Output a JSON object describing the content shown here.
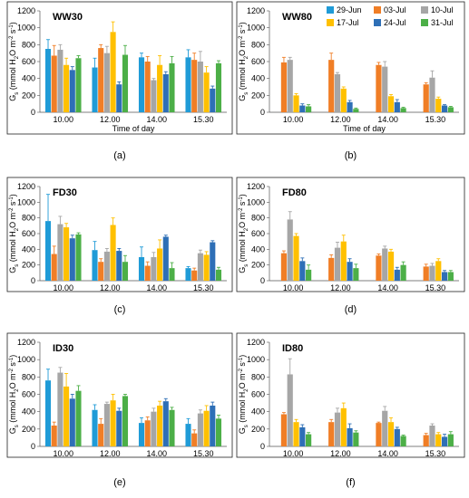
{
  "legend": [
    {
      "name": "29-Jun",
      "color": "#1f9bd7"
    },
    {
      "name": "03-Jul",
      "color": "#f07e26"
    },
    {
      "name": "10-Jul",
      "color": "#a6a6a6"
    },
    {
      "name": "17-Jul",
      "color": "#ffc000"
    },
    {
      "name": "24-Jul",
      "color": "#2e6fb6"
    },
    {
      "name": "31-Jul",
      "color": "#4caf47"
    }
  ],
  "chart_data": [
    {
      "type": "bar",
      "panel_label": "(a)",
      "title": "WW30",
      "xlabel": "Time of day",
      "ylabel": "Gs (mmol H2O m-2 s-1)",
      "ylim": [
        0,
        1200
      ],
      "yticks": [
        0,
        200,
        400,
        600,
        800,
        1000,
        1200
      ],
      "categories": [
        "10.00",
        "12.00",
        "14.00",
        "15.30"
      ],
      "grid": false,
      "series": [
        {
          "name": "29-Jun",
          "values": [
            750,
            530,
            650,
            650
          ],
          "errors": [
            110,
            110,
            50,
            90
          ]
        },
        {
          "name": "03-Jul",
          "values": [
            670,
            760,
            600,
            620
          ],
          "errors": [
            120,
            40,
            60,
            80
          ]
        },
        {
          "name": "10-Jul",
          "values": [
            740,
            700,
            380,
            600
          ],
          "errors": [
            60,
            80,
            20,
            120
          ]
        },
        {
          "name": "17-Jul",
          "values": [
            560,
            950,
            560,
            470
          ],
          "errors": [
            80,
            120,
            110,
            70
          ]
        },
        {
          "name": "24-Jul",
          "values": [
            500,
            330,
            450,
            280
          ],
          "errors": [
            40,
            30,
            30,
            30
          ]
        },
        {
          "name": "31-Jul",
          "values": [
            640,
            680,
            580,
            580
          ],
          "errors": [
            30,
            110,
            80,
            30
          ]
        }
      ]
    },
    {
      "type": "bar",
      "panel_label": "(b)",
      "title": "WW80",
      "xlabel": "Time of day",
      "ylabel": "Gs (mmol H2O m-2 s-1)",
      "ylim": [
        0,
        1200
      ],
      "yticks": [
        0,
        200,
        400,
        600,
        800,
        1000,
        1200
      ],
      "categories": [
        "10.00",
        "12.00",
        "14.00",
        "15.30"
      ],
      "grid": false,
      "series": [
        {
          "name": "29-Jun",
          "values": [
            null,
            null,
            null,
            null
          ],
          "errors": [
            0,
            0,
            0,
            0
          ]
        },
        {
          "name": "03-Jul",
          "values": [
            590,
            620,
            560,
            330
          ],
          "errors": [
            60,
            80,
            30,
            20
          ]
        },
        {
          "name": "10-Jul",
          "values": [
            620,
            450,
            540,
            410
          ],
          "errors": [
            30,
            20,
            60,
            80
          ]
        },
        {
          "name": "17-Jul",
          "values": [
            200,
            280,
            190,
            160
          ],
          "errors": [
            20,
            20,
            20,
            20
          ]
        },
        {
          "name": "24-Jul",
          "values": [
            80,
            120,
            120,
            80
          ],
          "errors": [
            20,
            20,
            30,
            10
          ]
        },
        {
          "name": "31-Jul",
          "values": [
            70,
            40,
            50,
            60
          ],
          "errors": [
            20,
            10,
            10,
            10
          ]
        }
      ]
    },
    {
      "type": "bar",
      "panel_label": "(c)",
      "title": "FD30",
      "xlabel": "",
      "ylabel": "Gs (mmol H2O m-2 s-1)",
      "ylim": [
        0,
        1200
      ],
      "yticks": [
        0,
        200,
        400,
        600,
        800,
        1000,
        1200
      ],
      "categories": [
        "10.00",
        "12.00",
        "14.00",
        "15.30"
      ],
      "grid": false,
      "series": [
        {
          "name": "29-Jun",
          "values": [
            760,
            390,
            300,
            160
          ],
          "errors": [
            340,
            110,
            130,
            20
          ]
        },
        {
          "name": "03-Jul",
          "values": [
            340,
            240,
            190,
            130
          ],
          "errors": [
            100,
            40,
            50,
            30
          ]
        },
        {
          "name": "10-Jul",
          "values": [
            720,
            370,
            300,
            350
          ],
          "errors": [
            100,
            40,
            60,
            40
          ]
        },
        {
          "name": "17-Jul",
          "values": [
            680,
            710,
            410,
            330
          ],
          "errors": [
            50,
            90,
            110,
            40
          ]
        },
        {
          "name": "24-Jul",
          "values": [
            540,
            380,
            560,
            490
          ],
          "errors": [
            40,
            30,
            20,
            20
          ]
        },
        {
          "name": "31-Jul",
          "values": [
            590,
            240,
            160,
            140
          ],
          "errors": [
            20,
            80,
            70,
            30
          ]
        }
      ]
    },
    {
      "type": "bar",
      "panel_label": "(d)",
      "title": "FD80",
      "xlabel": "",
      "ylabel": "Gs (mmol H2O m-2 s-1)",
      "ylim": [
        0,
        1200
      ],
      "yticks": [
        0,
        200,
        400,
        600,
        800,
        1000,
        1200
      ],
      "categories": [
        "10.00",
        "12.00",
        "14.00",
        "15.30"
      ],
      "grid": false,
      "series": [
        {
          "name": "29-Jun",
          "values": [
            null,
            null,
            null,
            null
          ],
          "errors": [
            0,
            0,
            0,
            0
          ]
        },
        {
          "name": "03-Jul",
          "values": [
            350,
            290,
            320,
            180
          ],
          "errors": [
            30,
            40,
            20,
            30
          ]
        },
        {
          "name": "10-Jul",
          "values": [
            780,
            420,
            410,
            190
          ],
          "errors": [
            100,
            70,
            30,
            30
          ]
        },
        {
          "name": "17-Jul",
          "values": [
            570,
            500,
            370,
            250
          ],
          "errors": [
            30,
            80,
            30,
            30
          ]
        },
        {
          "name": "24-Jul",
          "values": [
            250,
            240,
            140,
            110
          ],
          "errors": [
            40,
            40,
            30,
            20
          ]
        },
        {
          "name": "31-Jul",
          "values": [
            140,
            160,
            200,
            110
          ],
          "errors": [
            60,
            50,
            40,
            20
          ]
        }
      ]
    },
    {
      "type": "bar",
      "panel_label": "(e)",
      "title": "ID30",
      "xlabel": "",
      "ylabel": "Gs (mmol H2O m-2 s-1)",
      "ylim": [
        0,
        1200
      ],
      "yticks": [
        0,
        200,
        400,
        600,
        800,
        1000,
        1200
      ],
      "categories": [
        "10.00",
        "12.00",
        "14.00",
        "15.30"
      ],
      "grid": false,
      "series": [
        {
          "name": "29-Jun",
          "values": [
            760,
            420,
            270,
            260
          ],
          "errors": [
            130,
            60,
            60,
            60
          ]
        },
        {
          "name": "03-Jul",
          "values": [
            240,
            260,
            300,
            150
          ],
          "errors": [
            40,
            60,
            40,
            40
          ]
        },
        {
          "name": "10-Jul",
          "values": [
            850,
            490,
            400,
            380
          ],
          "errors": [
            60,
            20,
            40,
            40
          ]
        },
        {
          "name": "17-Jul",
          "values": [
            690,
            530,
            470,
            410
          ],
          "errors": [
            150,
            70,
            50,
            60
          ]
        },
        {
          "name": "24-Jul",
          "values": [
            550,
            410,
            520,
            470
          ],
          "errors": [
            50,
            30,
            30,
            40
          ]
        },
        {
          "name": "31-Jul",
          "values": [
            640,
            580,
            420,
            320
          ],
          "errors": [
            60,
            20,
            30,
            40
          ]
        }
      ]
    },
    {
      "type": "bar",
      "panel_label": "(f)",
      "title": "ID80",
      "xlabel": "",
      "ylabel": "Gs (mmol H2O m-2 s-1)",
      "ylim": [
        0,
        1200
      ],
      "yticks": [
        0,
        200,
        400,
        600,
        800,
        1000,
        1200
      ],
      "categories": [
        "10.00",
        "12.00",
        "14.00",
        "15.30"
      ],
      "grid": false,
      "series": [
        {
          "name": "29-Jun",
          "values": [
            null,
            null,
            null,
            null
          ],
          "errors": [
            0,
            0,
            0,
            0
          ]
        },
        {
          "name": "03-Jul",
          "values": [
            370,
            280,
            270,
            130
          ],
          "errors": [
            20,
            30,
            10,
            20
          ]
        },
        {
          "name": "10-Jul",
          "values": [
            830,
            390,
            410,
            240
          ],
          "errors": [
            180,
            50,
            50,
            20
          ]
        },
        {
          "name": "17-Jul",
          "values": [
            280,
            440,
            280,
            140
          ],
          "errors": [
            30,
            60,
            50,
            20
          ]
        },
        {
          "name": "24-Jul",
          "values": [
            220,
            210,
            200,
            110
          ],
          "errors": [
            30,
            50,
            20,
            30
          ]
        },
        {
          "name": "31-Jul",
          "values": [
            140,
            160,
            120,
            140
          ],
          "errors": [
            20,
            20,
            10,
            30
          ]
        }
      ]
    }
  ]
}
